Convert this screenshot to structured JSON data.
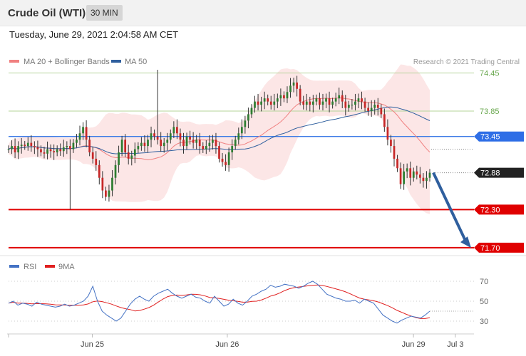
{
  "header": {
    "title": "Crude Oil (WTI)",
    "timeframe": "30 MIN",
    "date": "Tuesday, June 29, 2021 2:04:58 AM CET"
  },
  "chart_data": {
    "type": "candlestick",
    "main": {
      "legend": [
        {
          "label": "MA 20 + Bollinger Bands",
          "color": "#f08080"
        },
        {
          "label": "MA 50",
          "color": "#2f5f9e"
        }
      ],
      "credit": "Research © 2021 Trading Central",
      "ylim": [
        71.62,
        74.5
      ],
      "levels": [
        {
          "value": 74.45,
          "label": "74.45",
          "style": "resistance-green"
        },
        {
          "value": 73.85,
          "label": "73.85",
          "style": "resistance-green"
        },
        {
          "value": 73.45,
          "label": "73.45",
          "style": "pivot-blue"
        },
        {
          "value": 72.88,
          "label": "72.88",
          "style": "last-price"
        },
        {
          "value": 72.3,
          "label": "72.30",
          "style": "support-red"
        },
        {
          "value": 71.7,
          "label": "71.70",
          "style": "support-red"
        }
      ],
      "arrow": {
        "from": [
          129,
          72.88
        ],
        "to": [
          142,
          71.72
        ],
        "color": "#2f5f9e"
      },
      "closes": [
        73.25,
        73.3,
        73.2,
        73.3,
        73.32,
        73.3,
        73.35,
        73.3,
        73.28,
        73.25,
        73.2,
        73.18,
        73.25,
        73.22,
        73.2,
        73.25,
        73.22,
        73.28,
        73.3,
        73.25,
        73.35,
        73.4,
        73.5,
        73.6,
        73.4,
        73.2,
        73.1,
        73.0,
        72.8,
        72.6,
        72.5,
        72.6,
        72.8,
        73.0,
        73.2,
        73.4,
        73.2,
        73.1,
        73.15,
        73.25,
        73.3,
        73.35,
        73.3,
        73.4,
        73.5,
        73.45,
        73.4,
        73.3,
        73.35,
        73.4,
        73.5,
        73.6,
        73.5,
        73.4,
        73.3,
        73.45,
        73.4,
        73.35,
        73.4,
        73.3,
        73.25,
        73.3,
        73.35,
        73.4,
        73.3,
        73.1,
        73.05,
        73.0,
        73.2,
        73.3,
        73.4,
        73.5,
        73.6,
        73.7,
        73.8,
        73.9,
        74.0,
        73.95,
        74.0,
        74.05,
        74.0,
        73.95,
        74.0,
        74.05,
        74.1,
        74.05,
        74.15,
        74.25,
        74.3,
        74.2,
        74.0,
        73.95,
        74.0,
        73.95,
        74.0,
        74.05,
        73.95,
        74.0,
        74.05,
        73.95,
        74.0,
        74.05,
        74.1,
        74.0,
        73.9,
        73.95,
        73.95,
        74.0,
        74.05,
        74.0,
        73.9,
        73.85,
        73.9,
        73.95,
        73.9,
        73.8,
        73.6,
        73.4,
        73.3,
        73.1,
        72.95,
        72.7,
        72.9,
        72.95,
        72.8,
        72.9,
        72.85,
        72.8,
        72.75,
        72.8,
        72.88
      ],
      "highs": {
        "46": 74.5
      },
      "lows": {
        "19": 72.3
      }
    },
    "rsi": {
      "legend": [
        {
          "label": "RSI",
          "color": "#4472c4"
        },
        {
          "label": "9MA",
          "color": "#e02020"
        }
      ],
      "ylim": [
        25,
        75
      ],
      "ticks": [
        70,
        50,
        30
      ],
      "values": [
        48,
        50,
        46,
        48,
        47,
        45,
        49,
        47,
        46,
        45,
        44,
        45,
        47,
        45,
        46,
        48,
        50,
        55,
        65,
        50,
        40,
        36,
        33,
        30,
        33,
        40,
        47,
        52,
        55,
        52,
        50,
        55,
        58,
        60,
        62,
        58,
        55,
        53,
        55,
        57,
        54,
        53,
        50,
        48,
        55,
        50,
        45,
        47,
        52,
        48,
        46,
        50,
        55,
        57,
        60,
        62,
        66,
        64,
        65,
        67,
        66,
        65,
        63,
        65,
        68,
        70,
        67,
        62,
        57,
        55,
        53,
        52,
        50,
        50,
        51,
        48,
        52,
        50,
        48,
        42,
        36,
        33,
        30,
        28,
        31,
        33,
        35,
        34,
        33,
        36,
        40
      ]
    },
    "x_ticks": [
      {
        "label": "Jun 25",
        "pos": 18
      },
      {
        "label": "Jun 26",
        "pos": 47
      },
      {
        "label": "Jun 29",
        "pos": 87
      },
      {
        "label": "Jul 3",
        "pos": 96
      }
    ]
  }
}
